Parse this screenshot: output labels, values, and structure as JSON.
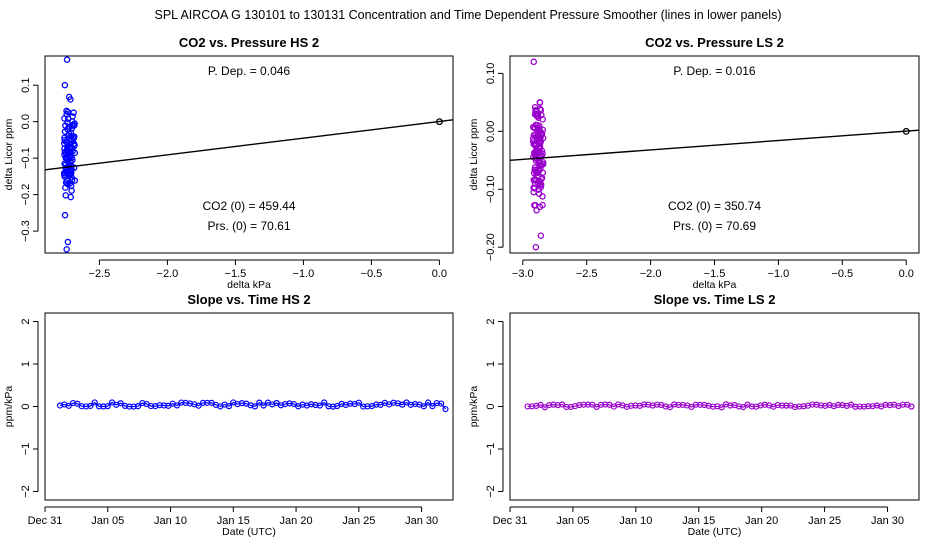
{
  "suptitle": "SPL    AIRCOA G    130101 to 130131    Concentration and Time Dependent Pressure Smoother (lines in lower panels)",
  "colors": {
    "hs": "#0000ff",
    "ls": "#9900cc",
    "fit": "#000000",
    "axis": "#000000"
  },
  "chart_data": [
    {
      "id": "p1",
      "type": "scatter",
      "title": "CO2 vs. Pressure HS 2",
      "xlabel": "delta kPa",
      "ylabel": "delta Licor ppm",
      "xlim": [
        -2.9,
        0.1
      ],
      "ylim": [
        -0.36,
        0.18
      ],
      "xticks": [
        -2.5,
        -2.0,
        -1.5,
        -1.0,
        -0.5,
        0.0
      ],
      "xticklabels": [
        "−2.5",
        "−2.0",
        "−1.5",
        "−1.0",
        "−0.5",
        "0.0"
      ],
      "yticks": [
        -0.3,
        -0.2,
        -0.1,
        0.0,
        0.1
      ],
      "yticklabels": [
        "−0.3",
        "−0.2",
        "−0.1",
        "0.0",
        "0.1"
      ],
      "color_key": "hs",
      "cluster": {
        "x_center": -2.72,
        "x_spread": 0.04,
        "y_min": -0.35,
        "y_max": 0.17,
        "n": 110
      },
      "fit_line": {
        "x": [
          -2.9,
          0.1
        ],
        "y": [
          -0.132,
          0.005
        ]
      },
      "anchor_point": {
        "x": 0.0,
        "y": 0.0
      },
      "annotations": {
        "pdep": "P. Dep. =  0.046",
        "co2": "CO2 (0) =  459.44",
        "prs": "Prs. (0) =  70.61"
      }
    },
    {
      "id": "p2",
      "type": "scatter",
      "title": "CO2 vs. Pressure LS 2",
      "xlabel": "delta kPa",
      "ylabel": "delta Licor ppm",
      "xlim": [
        -3.1,
        0.1
      ],
      "ylim": [
        -0.21,
        0.13
      ],
      "xticks": [
        -3.0,
        -2.5,
        -2.0,
        -1.5,
        -1.0,
        -0.5,
        0.0
      ],
      "xticklabels": [
        "−3.0",
        "−2.5",
        "−2.0",
        "−1.5",
        "−1.0",
        "−0.5",
        "0.0"
      ],
      "yticks": [
        -0.2,
        -0.1,
        0.0,
        0.1
      ],
      "yticklabels": [
        "−0.20",
        "−0.10",
        "0.00",
        "0.10"
      ],
      "color_key": "ls",
      "cluster": {
        "x_center": -2.88,
        "x_spread": 0.04,
        "y_min": -0.2,
        "y_max": 0.12,
        "n": 130
      },
      "fit_line": {
        "x": [
          -3.1,
          0.1
        ],
        "y": [
          -0.05,
          0.002
        ]
      },
      "anchor_point": {
        "x": 0.0,
        "y": 0.0
      },
      "annotations": {
        "pdep": "P. Dep. =  0.016",
        "co2": "CO2 (0) =  350.74",
        "prs": "Prs. (0) =  70.69"
      }
    },
    {
      "id": "p3",
      "type": "line",
      "title": "Slope vs. Time HS 2",
      "xlabel": "Date (UTC)",
      "ylabel": "ppm/kPa",
      "xlim": [
        0,
        32.5
      ],
      "ylim": [
        -2.2,
        2.2
      ],
      "xticks": [
        0,
        5,
        10,
        15,
        20,
        25,
        30
      ],
      "xticklabels": [
        "Dec 31",
        "Jan 05",
        "Jan 10",
        "Jan 15",
        "Jan 20",
        "Jan 25",
        "Jan 30"
      ],
      "yticks": [
        -2,
        -1,
        0,
        1,
        2
      ],
      "yticklabels": [
        "−2",
        "−1",
        "0",
        "1",
        "2"
      ],
      "color_key": "hs",
      "series": {
        "x_start": 1.2,
        "x_end": 31.9,
        "n": 90,
        "base": 0.046,
        "noise": 0.05,
        "last": -0.06
      }
    },
    {
      "id": "p4",
      "type": "line",
      "title": "Slope vs. Time LS 2",
      "xlabel": "Date (UTC)",
      "ylabel": "ppm/kPa",
      "xlim": [
        0,
        32.5
      ],
      "ylim": [
        -2.2,
        2.2
      ],
      "xticks": [
        0,
        5,
        10,
        15,
        20,
        25,
        30
      ],
      "xticklabels": [
        "Dec 31",
        "Jan 05",
        "Jan 10",
        "Jan 15",
        "Jan 20",
        "Jan 25",
        "Jan 30"
      ],
      "yticks": [
        -2,
        -1,
        0,
        1,
        2
      ],
      "yticklabels": [
        "−2",
        "−1",
        "0",
        "1",
        "2"
      ],
      "color_key": "ls",
      "series": {
        "x_start": 1.4,
        "x_end": 31.9,
        "n": 90,
        "base": 0.016,
        "noise": 0.035,
        "last": 0.0
      }
    }
  ]
}
